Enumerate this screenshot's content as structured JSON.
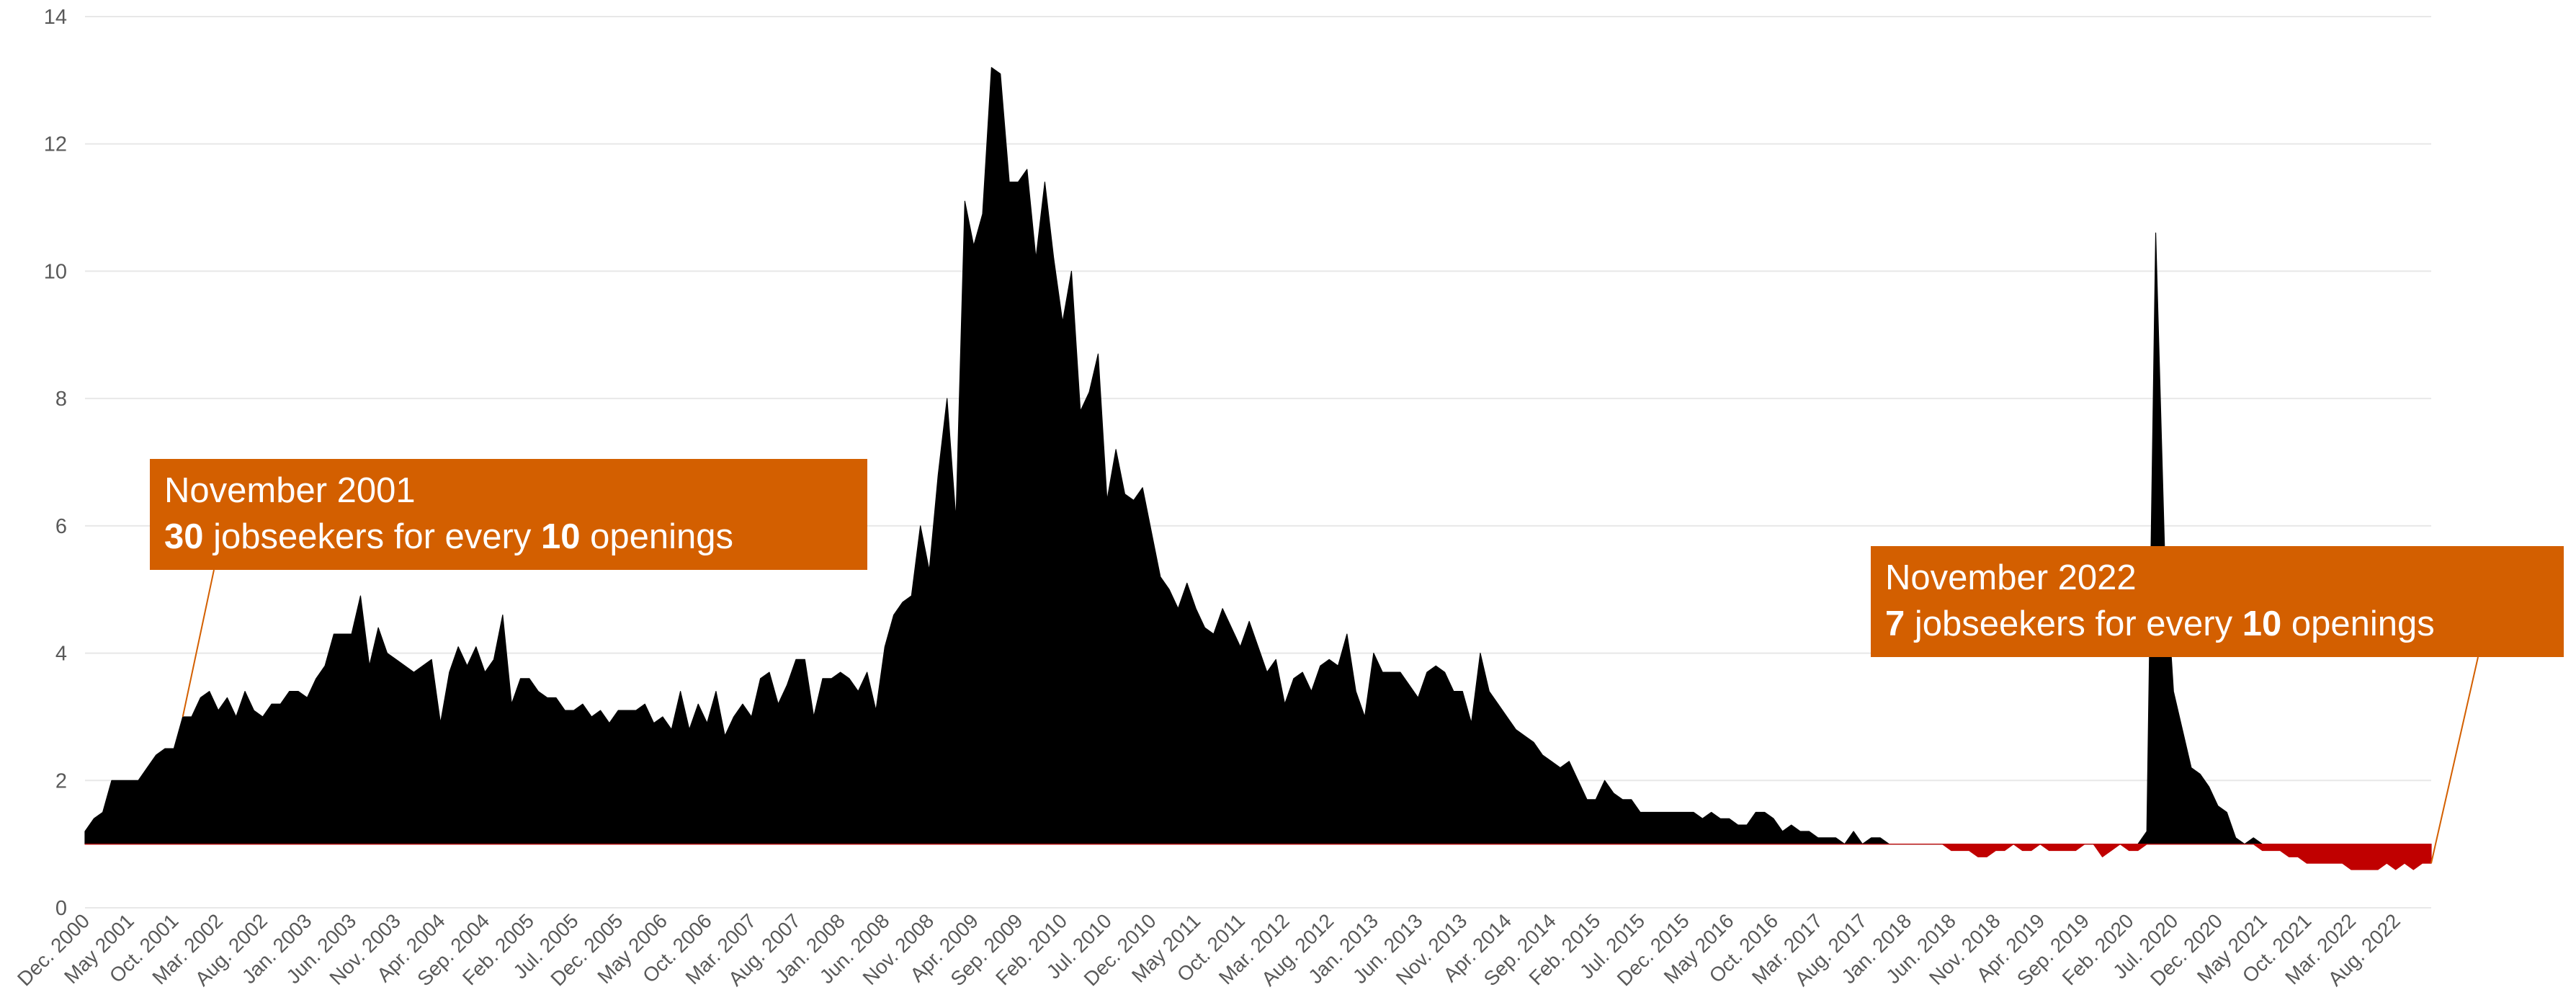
{
  "colors": {
    "above": "#000000",
    "below": "#c00000",
    "annotation_bg": "#d35f00",
    "annotation_text": "#ffffff",
    "grid": "#e8e8e8",
    "axis_text": "#595959"
  },
  "annotations": [
    {
      "line1": "November 2001",
      "number": "30",
      "middle": " jobseekers for every ",
      "number2": "10",
      "end": " openings"
    },
    {
      "line1": "November 2022",
      "number": "7",
      "middle": " jobseekers for every ",
      "number2": "10",
      "end": " openings"
    }
  ],
  "chart_data": {
    "type": "area",
    "baseline": 1,
    "ylim": [
      0,
      14
    ],
    "yticks": [
      0,
      2,
      4,
      6,
      8,
      10,
      12,
      14
    ],
    "grid": true,
    "x_start": "Dec. 2000",
    "x_end": "Nov. 2022",
    "xtick_labels": [
      "Dec. 2000",
      "May 2001",
      "Oct. 2001",
      "Mar. 2002",
      "Aug. 2002",
      "Jan. 2003",
      "Jun. 2003",
      "Nov. 2003",
      "Apr. 2004",
      "Sep. 2004",
      "Feb. 2005",
      "Jul. 2005",
      "Dec. 2005",
      "May 2006",
      "Oct. 2006",
      "Mar. 2007",
      "Aug. 2007",
      "Jan. 2008",
      "Jun. 2008",
      "Nov. 2008",
      "Apr. 2009",
      "Sep. 2009",
      "Feb. 2010",
      "Jul. 2010",
      "Dec. 2010",
      "May 2011",
      "Oct. 2011",
      "Mar. 2012",
      "Aug. 2012",
      "Jan. 2013",
      "Jun. 2013",
      "Nov. 2013",
      "Apr. 2014",
      "Sep. 2014",
      "Feb. 2015",
      "Jul. 2015",
      "Dec. 2015",
      "May 2016",
      "Oct. 2016",
      "Mar. 2017",
      "Aug. 2017",
      "Jan. 2018",
      "Jun. 2018",
      "Nov. 2018",
      "Apr. 2019",
      "Sep. 2019",
      "Feb. 2020",
      "Jul. 2020",
      "Dec. 2020",
      "May 2021",
      "Oct. 2021",
      "Mar. 2022",
      "Aug. 2022"
    ],
    "values": [
      1.2,
      1.4,
      1.5,
      2.0,
      2.0,
      2.0,
      2.0,
      2.2,
      2.4,
      2.5,
      2.5,
      3.0,
      3.0,
      3.3,
      3.4,
      3.1,
      3.3,
      3.0,
      3.4,
      3.1,
      3.0,
      3.2,
      3.2,
      3.4,
      3.4,
      3.3,
      3.6,
      3.8,
      4.3,
      4.3,
      4.3,
      4.9,
      3.8,
      4.4,
      4.0,
      3.9,
      3.8,
      3.7,
      3.8,
      3.9,
      2.9,
      3.7,
      4.1,
      3.8,
      4.1,
      3.7,
      3.9,
      4.6,
      3.2,
      3.6,
      3.6,
      3.4,
      3.3,
      3.3,
      3.1,
      3.1,
      3.2,
      3.0,
      3.1,
      2.9,
      3.1,
      3.1,
      3.1,
      3.2,
      2.9,
      3.0,
      2.8,
      3.4,
      2.8,
      3.2,
      2.9,
      3.4,
      2.7,
      3.0,
      3.2,
      3.0,
      3.6,
      3.7,
      3.2,
      3.5,
      3.9,
      3.9,
      3.0,
      3.6,
      3.6,
      3.7,
      3.6,
      3.4,
      3.7,
      3.1,
      4.1,
      4.6,
      4.8,
      4.9,
      6.0,
      5.3,
      6.8,
      8.0,
      6.1,
      11.1,
      10.4,
      10.9,
      13.2,
      13.1,
      11.4,
      11.4,
      11.6,
      10.2,
      11.4,
      10.2,
      9.2,
      10.0,
      7.8,
      8.1,
      8.7,
      6.4,
      7.2,
      6.5,
      6.4,
      6.6,
      5.9,
      5.2,
      5.0,
      4.7,
      5.1,
      4.7,
      4.4,
      4.3,
      4.7,
      4.4,
      4.1,
      4.5,
      4.1,
      3.7,
      3.9,
      3.2,
      3.6,
      3.7,
      3.4,
      3.8,
      3.9,
      3.8,
      4.3,
      3.4,
      3.0,
      4.0,
      3.7,
      3.7,
      3.7,
      3.5,
      3.3,
      3.7,
      3.8,
      3.7,
      3.4,
      3.4,
      2.9,
      4.0,
      3.4,
      3.2,
      3.0,
      2.8,
      2.7,
      2.6,
      2.4,
      2.3,
      2.2,
      2.3,
      2.0,
      1.7,
      1.7,
      2.0,
      1.8,
      1.7,
      1.7,
      1.5,
      1.5,
      1.5,
      1.5,
      1.5,
      1.5,
      1.5,
      1.4,
      1.5,
      1.4,
      1.4,
      1.3,
      1.3,
      1.5,
      1.5,
      1.4,
      1.2,
      1.3,
      1.2,
      1.2,
      1.1,
      1.1,
      1.1,
      1.0,
      1.2,
      1.0,
      1.1,
      1.1,
      1.0,
      1.0,
      1.0,
      1.0,
      1.0,
      1.0,
      1.0,
      0.9,
      0.9,
      0.9,
      0.8,
      0.8,
      0.9,
      0.9,
      1.0,
      0.9,
      0.9,
      1.0,
      0.9,
      0.9,
      0.9,
      0.9,
      1.0,
      1.0,
      0.8,
      0.9,
      1.0,
      0.9,
      0.9,
      1.2,
      10.6,
      5.6,
      3.4,
      2.8,
      2.2,
      2.1,
      1.9,
      1.6,
      1.5,
      1.1,
      1.0,
      1.1,
      0.9,
      0.9,
      0.9,
      0.8,
      0.8,
      0.7,
      0.7,
      0.7,
      0.7,
      0.7,
      0.6,
      0.6,
      0.6,
      0.6,
      0.7,
      0.6,
      0.7,
      0.6,
      0.7,
      0.7
    ]
  }
}
